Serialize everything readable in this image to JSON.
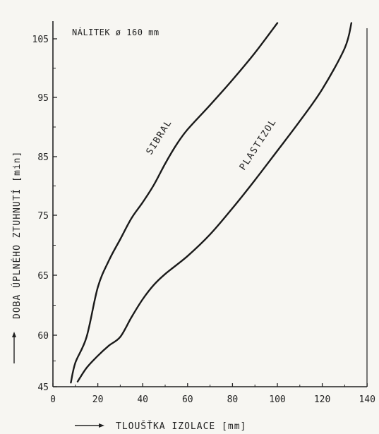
{
  "chart_data": {
    "type": "line",
    "title": "NÁLITEK ø 160 mm",
    "xlabel": "TLOUŠŤKA IZOLACE [mm]",
    "ylabel": "DOBA ÚPLNÉHO ZTUHNUTÍ [min]",
    "x_ticks": [
      "0",
      "20",
      "40",
      "60",
      "80",
      "100",
      "120",
      "140"
    ],
    "y_ticks": [
      "45",
      "60",
      "65",
      "75",
      "85",
      "95",
      "105"
    ],
    "y_tick_values": [
      45,
      60,
      65,
      75,
      85,
      95,
      105
    ],
    "xlim": [
      0,
      140
    ],
    "grid": false,
    "legend": "none",
    "series": [
      {
        "name": "SIBRAL",
        "x": [
          8,
          10,
          15,
          20,
          25,
          30,
          35,
          40,
          45,
          50,
          55,
          60,
          70,
          80,
          90,
          100
        ],
        "y": [
          46.2,
          52,
          59.5,
          64,
          67.5,
          71,
          74.5,
          77.2,
          80.2,
          83.8,
          87,
          89.6,
          93.7,
          98,
          102.6,
          107.7
        ]
      },
      {
        "name": "PLASTIZOL",
        "x": [
          11,
          15,
          20,
          25,
          30,
          35,
          40,
          45,
          50,
          60,
          70,
          80,
          90,
          100,
          110,
          120,
          130,
          133
        ],
        "y": [
          46.5,
          50.5,
          54,
          57,
          59.5,
          61.5,
          63,
          64.2,
          65.2,
          68.2,
          71.8,
          76.2,
          81,
          86,
          91,
          96.4,
          103.4,
          107.7
        ]
      }
    ],
    "annotations": [
      "SIBRAL",
      "PLASTIZOL"
    ]
  }
}
